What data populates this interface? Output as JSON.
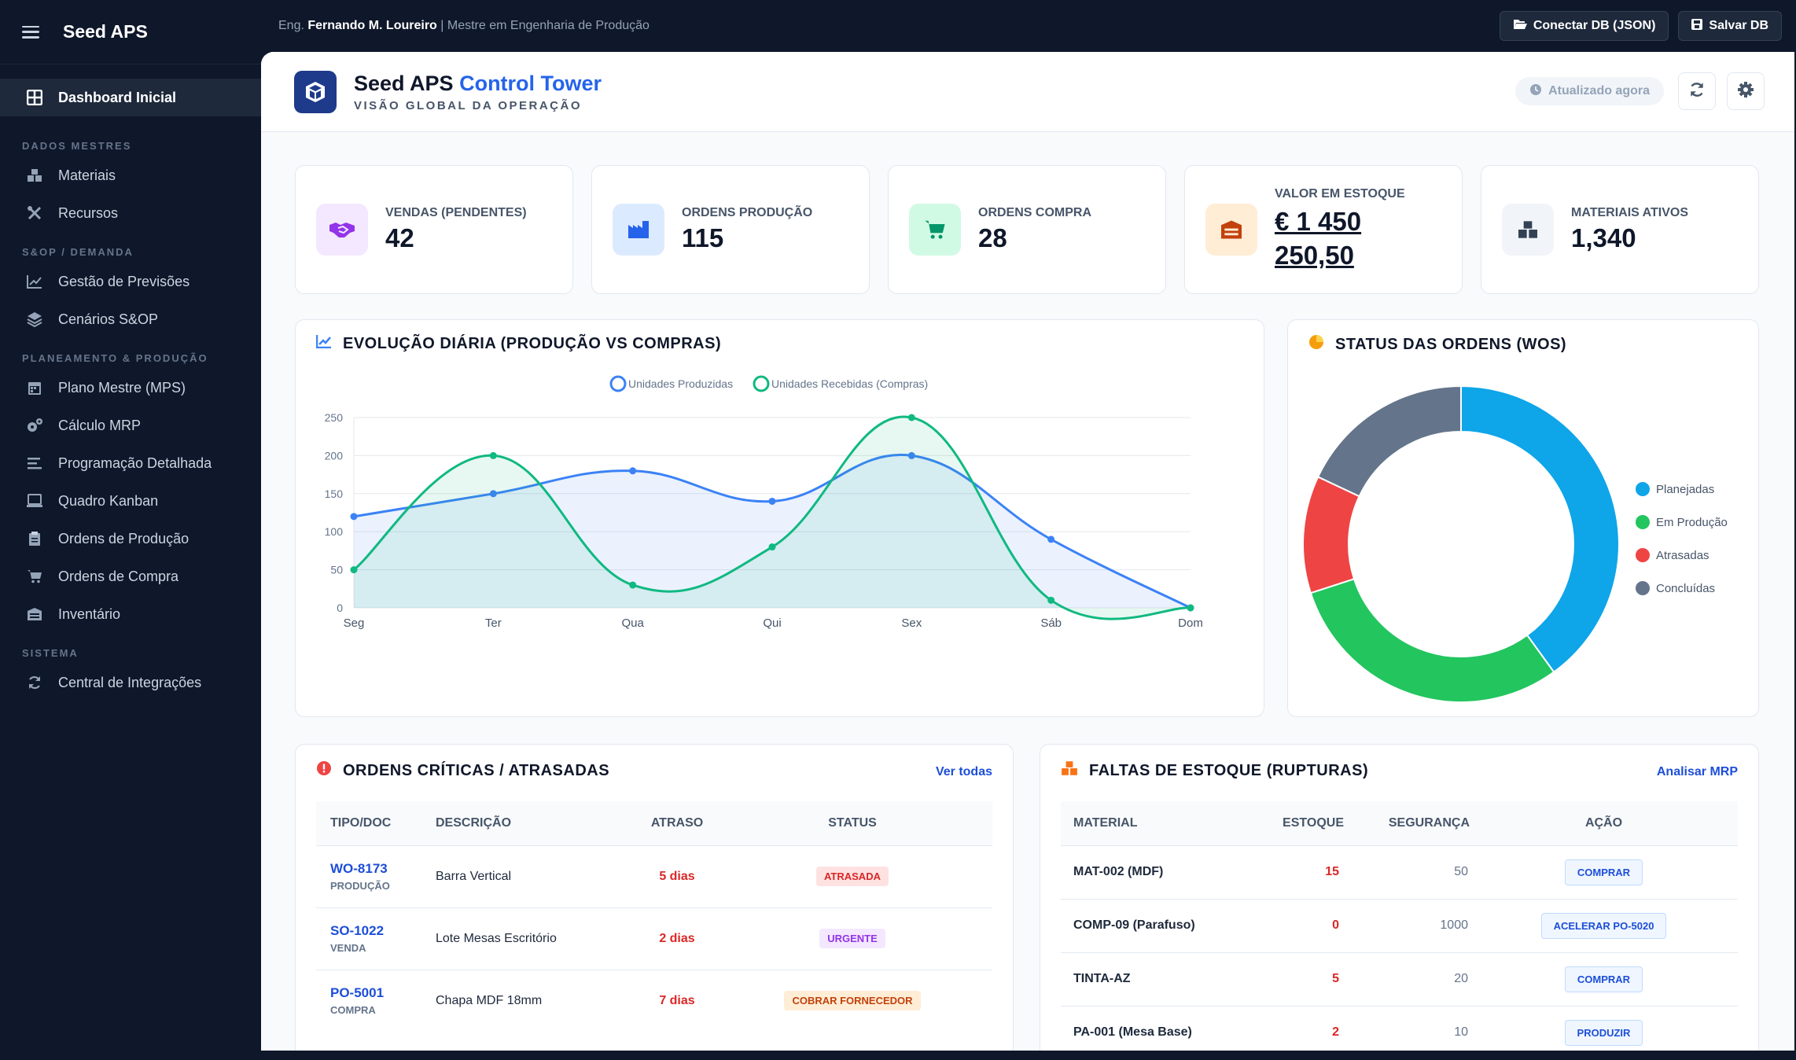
{
  "sidebar": {
    "app_title": "Seed APS",
    "active_item": "Dashboard Inicial",
    "sections": [
      {
        "title": "DADOS MESTRES",
        "items": [
          "Materiais",
          "Recursos"
        ]
      },
      {
        "title": "S&OP / DEMANDA",
        "items": [
          "Gestão de Previsões",
          "Cenários S&OP"
        ]
      },
      {
        "title": "PLANEAMENTO & PRODUÇÃO",
        "items": [
          "Plano Mestre (MPS)",
          "Cálculo MRP",
          "Programação Detalhada",
          "Quadro Kanban",
          "Ordens de Produção",
          "Ordens de Compra",
          "Inventário"
        ]
      },
      {
        "title": "SISTEMA",
        "items": [
          "Central de Integrações"
        ]
      }
    ]
  },
  "topbar": {
    "prefix": "Eng.",
    "user_name": "Fernando M. Loureiro",
    "user_role": "| Mestre em Engenharia de Produção",
    "connect_button": "Conectar DB (JSON)",
    "save_button": "Salvar DB"
  },
  "header": {
    "title_main": "Seed APS",
    "title_accent": "Control Tower",
    "subtitle": "VISÃO GLOBAL DA OPERAÇÃO",
    "updated_label": "Atualizado agora"
  },
  "kpis": [
    {
      "label": "VENDAS (PENDENTES)",
      "value": "42",
      "icon": "handshake-icon",
      "color": "#9333ea",
      "bg": "#f3e8ff"
    },
    {
      "label": "ORDENS PRODUÇÃO",
      "value": "115",
      "icon": "factory-icon",
      "color": "#2563eb",
      "bg": "#dbeafe"
    },
    {
      "label": "ORDENS COMPRA",
      "value": "28",
      "icon": "cart-icon",
      "color": "#059669",
      "bg": "#d1fae5"
    },
    {
      "label": "VALOR EM ESTOQUE",
      "value_line1": "€ 1 450",
      "value_line2": "250,50",
      "icon": "warehouse-icon",
      "color": "#c2410c",
      "bg": "#ffedd5"
    },
    {
      "label": "MATERIAIS ATIVOS",
      "value": "1,340",
      "icon": "boxes-icon",
      "color": "#334155",
      "bg": "#f1f5f9"
    }
  ],
  "line_panel": {
    "title": "EVOLUÇÃO DIÁRIA (PRODUÇÃO VS COMPRAS)"
  },
  "donut_panel": {
    "title": "STATUS DAS ORDENS (WOS)"
  },
  "chart_data": [
    {
      "type": "line",
      "title": "EVOLUÇÃO DIÁRIA (PRODUÇÃO VS COMPRAS)",
      "categories": [
        "Seg",
        "Ter",
        "Qua",
        "Qui",
        "Sex",
        "Sáb",
        "Dom"
      ],
      "ylim": [
        0,
        250
      ],
      "yticks": [
        0,
        50,
        100,
        150,
        200,
        250
      ],
      "grid": true,
      "legend": "top",
      "series": [
        {
          "name": "Unidades Produzidas",
          "color": "#3b82f6",
          "values": [
            120,
            150,
            180,
            140,
            200,
            90,
            0
          ]
        },
        {
          "name": "Unidades Recebidas (Compras)",
          "color": "#10b981",
          "values": [
            50,
            200,
            30,
            80,
            250,
            10,
            0
          ]
        }
      ]
    },
    {
      "type": "pie",
      "title": "STATUS DAS ORDENS (WOS)",
      "legend": "right",
      "slices": [
        {
          "label": "Planejadas",
          "value": 40,
          "color": "#0ea5e9"
        },
        {
          "label": "Em Produção",
          "value": 30,
          "color": "#22c55e"
        },
        {
          "label": "Atrasadas",
          "value": 12,
          "color": "#ef4444"
        },
        {
          "label": "Concluídas",
          "value": 18,
          "color": "#64748b"
        }
      ]
    }
  ],
  "critical_orders": {
    "title": "ORDENS CRÍTICAS / ATRASADAS",
    "link": "Ver todas",
    "columns": [
      "TIPO/DOC",
      "DESCRIÇÃO",
      "ATRASO",
      "STATUS"
    ],
    "rows": [
      {
        "doc": "WO-8173",
        "type": "PRODUÇÃO",
        "desc": "Barra Vertical",
        "delay": "5 dias",
        "status": "ATRASADA",
        "status_color": "#dc2626",
        "status_bg": "#fee2e2"
      },
      {
        "doc": "SO-1022",
        "type": "VENDA",
        "desc": "Lote Mesas Escritório",
        "delay": "2 dias",
        "status": "URGENTE",
        "status_color": "#9333ea",
        "status_bg": "#f3e8ff"
      },
      {
        "doc": "PO-5001",
        "type": "COMPRA",
        "desc": "Chapa MDF 18mm",
        "delay": "7 dias",
        "status": "COBRAR FORNECEDOR",
        "status_color": "#c2410c",
        "status_bg": "#ffedd5"
      }
    ]
  },
  "stockouts": {
    "title": "FALTAS DE ESTOQUE (RUPTURAS)",
    "link": "Analisar MRP",
    "columns": [
      "MATERIAL",
      "ESTOQUE",
      "SEGURANÇA",
      "AÇÃO"
    ],
    "rows": [
      {
        "material": "MAT-002 (MDF)",
        "stock": "15",
        "safety": "50",
        "action": "COMPRAR"
      },
      {
        "material": "COMP-09 (Parafuso)",
        "stock": "0",
        "safety": "1000",
        "action": "ACELERAR PO-5020"
      },
      {
        "material": "TINTA-AZ",
        "stock": "5",
        "safety": "20",
        "action": "COMPRAR"
      },
      {
        "material": "PA-001 (Mesa Base)",
        "stock": "2",
        "safety": "10",
        "action": "PRODUZIR"
      }
    ]
  }
}
